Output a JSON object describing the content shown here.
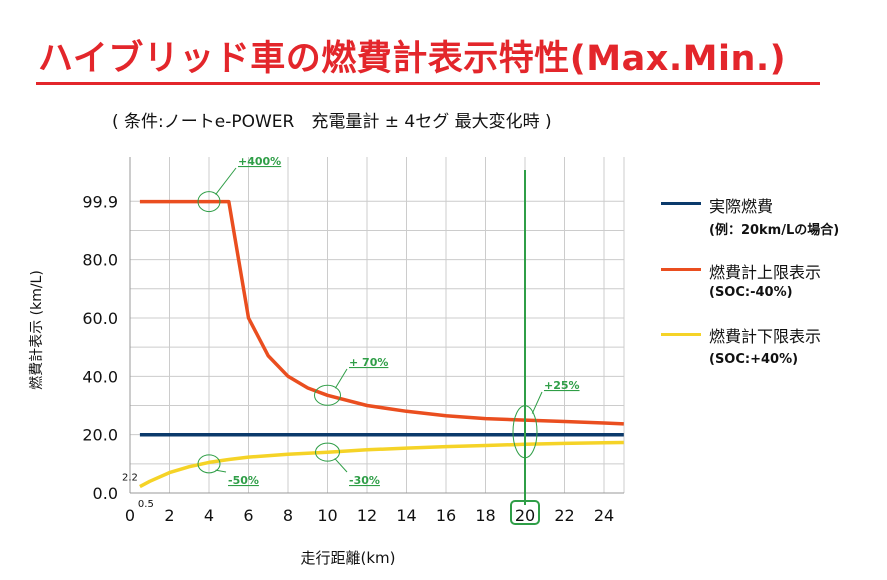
{
  "title": "ハイブリッド車の燃費計表示特性(Max.Min.)",
  "subtitle": "( 条件:ノートe-POWER　充電量計 ± 4セグ 最大変化時 )",
  "colors": {
    "title": "#e3262b",
    "actual": "#0b3a6b",
    "upper": "#ea4e1f",
    "lower": "#f5d327",
    "marker": "#2f9e47",
    "grid": "#cccccc"
  },
  "chart_data": {
    "type": "line",
    "xlabel": "走行距離(km)",
    "ylabel": "燃費計表示 (km/L)",
    "xlim": [
      0,
      25
    ],
    "ylim": [
      0,
      103
    ],
    "x_ticks": [
      0,
      2,
      4,
      6,
      8,
      10,
      12,
      14,
      16,
      18,
      20,
      22,
      24
    ],
    "y_ticks": [
      {
        "value": 0,
        "label": "0.0"
      },
      {
        "value": 20,
        "label": "20.0"
      },
      {
        "value": 40,
        "label": "40.0"
      },
      {
        "value": 60,
        "label": "60.0"
      },
      {
        "value": 80,
        "label": "80.0"
      },
      {
        "value": 99.9,
        "label": "99.9"
      }
    ],
    "grid": true,
    "series": [
      {
        "name": "実際燃費",
        "sub": "(例：20km/Lの場合)",
        "color": "#0b3a6b",
        "x": [
          0.5,
          25
        ],
        "y": [
          20,
          20
        ]
      },
      {
        "name": "燃費計上限表示",
        "sub": "(SOC:-40%)",
        "color": "#ea4e1f",
        "x": [
          0.5,
          4,
          5,
          5.5,
          6,
          7,
          8,
          9,
          10,
          12,
          14,
          16,
          18,
          20,
          22,
          24,
          25
        ],
        "y": [
          99.9,
          99.9,
          99.9,
          80,
          60,
          47,
          40,
          36,
          33.5,
          30,
          28,
          26.5,
          25.5,
          25,
          24.5,
          24,
          23.7
        ]
      },
      {
        "name": "燃費計下限表示",
        "sub": "(SOC:+40%)",
        "color": "#f5d327",
        "x": [
          0.5,
          1,
          2,
          3,
          4,
          5,
          6,
          8,
          10,
          12,
          14,
          16,
          18,
          20,
          22,
          24,
          25
        ],
        "y": [
          2.2,
          4,
          7,
          9,
          10.5,
          11.5,
          12.3,
          13.3,
          14,
          14.8,
          15.4,
          15.9,
          16.3,
          16.7,
          17,
          17.2,
          17.3
        ]
      }
    ],
    "annotations": [
      {
        "label": "+400%",
        "x": 4,
        "y": 99.9
      },
      {
        "label": "+ 70%",
        "x": 10,
        "y": 33.5
      },
      {
        "label": "+25%",
        "x": 20,
        "y": 21
      },
      {
        "label": "-50%",
        "x": 4,
        "y": 10
      },
      {
        "label": "-30%",
        "x": 10,
        "y": 14
      }
    ],
    "point_labels": [
      {
        "label": "2.2",
        "x": 0.5,
        "y": 2.2
      },
      {
        "label": "0.5",
        "x": 0.5,
        "y": 0
      }
    ],
    "marker_line_x": 20
  }
}
